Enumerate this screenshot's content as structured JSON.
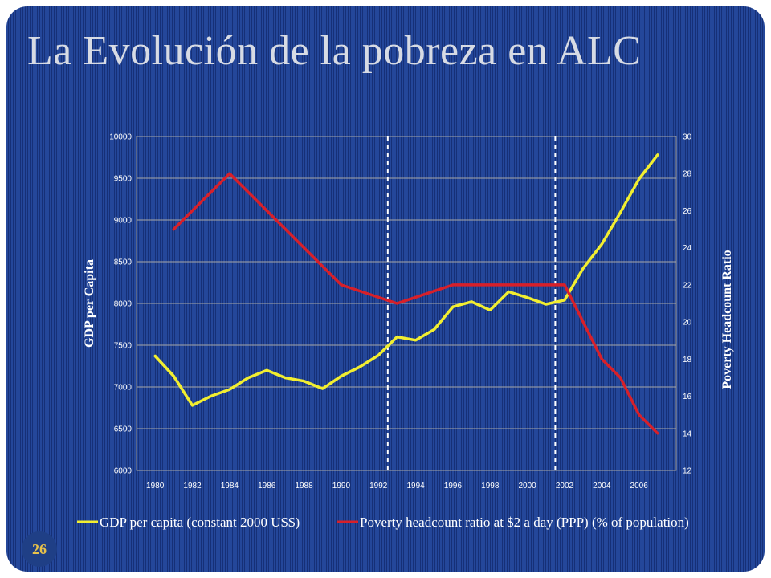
{
  "slide": {
    "title": "La Evolución de la pobreza en ALC",
    "page_number": "26"
  },
  "colors": {
    "background": "#24479a",
    "gdp_line": "#f2ee30",
    "poverty_line": "#d7202a",
    "grid": "#a7a7a7"
  },
  "chart_data": {
    "type": "line",
    "x_ticks": [
      "1980",
      "1982",
      "1984",
      "1986",
      "1988",
      "1990",
      "1992",
      "1994",
      "1996",
      "1998",
      "2000",
      "2002",
      "2004",
      "2006"
    ],
    "y_left": {
      "label": "GDP per Capita",
      "range": [
        6000,
        10000
      ],
      "ticks": [
        "6000",
        "6500",
        "7000",
        "7500",
        "8000",
        "8500",
        "9000",
        "9500",
        "10000"
      ]
    },
    "y_right": {
      "label": "Poverty Headcount Ratio",
      "range": [
        12,
        30
      ],
      "ticks": [
        "12",
        "14",
        "16",
        "18",
        "20",
        "22",
        "24",
        "26",
        "28",
        "30"
      ]
    },
    "grid": true,
    "legend_position": "bottom",
    "vertical_markers": [
      1992.5,
      2001.5
    ],
    "series": [
      {
        "name": "GDP per capita (constant 2000 US$)",
        "axis": "left",
        "color": "#f2ee30",
        "x": [
          1980,
          1981,
          1982,
          1983,
          1984,
          1985,
          1986,
          1987,
          1988,
          1989,
          1990,
          1991,
          1992,
          1993,
          1994,
          1995,
          1996,
          1997,
          1998,
          1999,
          2000,
          2001,
          2002,
          2003,
          2004,
          2005,
          2006,
          2007
        ],
        "y": [
          7370,
          7130,
          6780,
          6890,
          6970,
          7110,
          7200,
          7110,
          7070,
          6980,
          7130,
          7240,
          7380,
          7600,
          7560,
          7690,
          7960,
          8020,
          7920,
          8140,
          8070,
          7990,
          8040,
          8420,
          8710,
          9090,
          9490,
          9780
        ]
      },
      {
        "name": "Poverty headcount ratio at $2 a day (PPP) (% of population)",
        "axis": "right",
        "color": "#d7202a",
        "x": [
          1981,
          1984,
          1986,
          1988,
          1990,
          1993,
          1996,
          1999,
          2002,
          2004,
          2005,
          2006,
          2007
        ],
        "y": [
          25,
          28,
          26,
          24,
          22,
          21,
          22,
          22,
          22,
          18,
          17,
          15,
          14
        ]
      }
    ]
  }
}
